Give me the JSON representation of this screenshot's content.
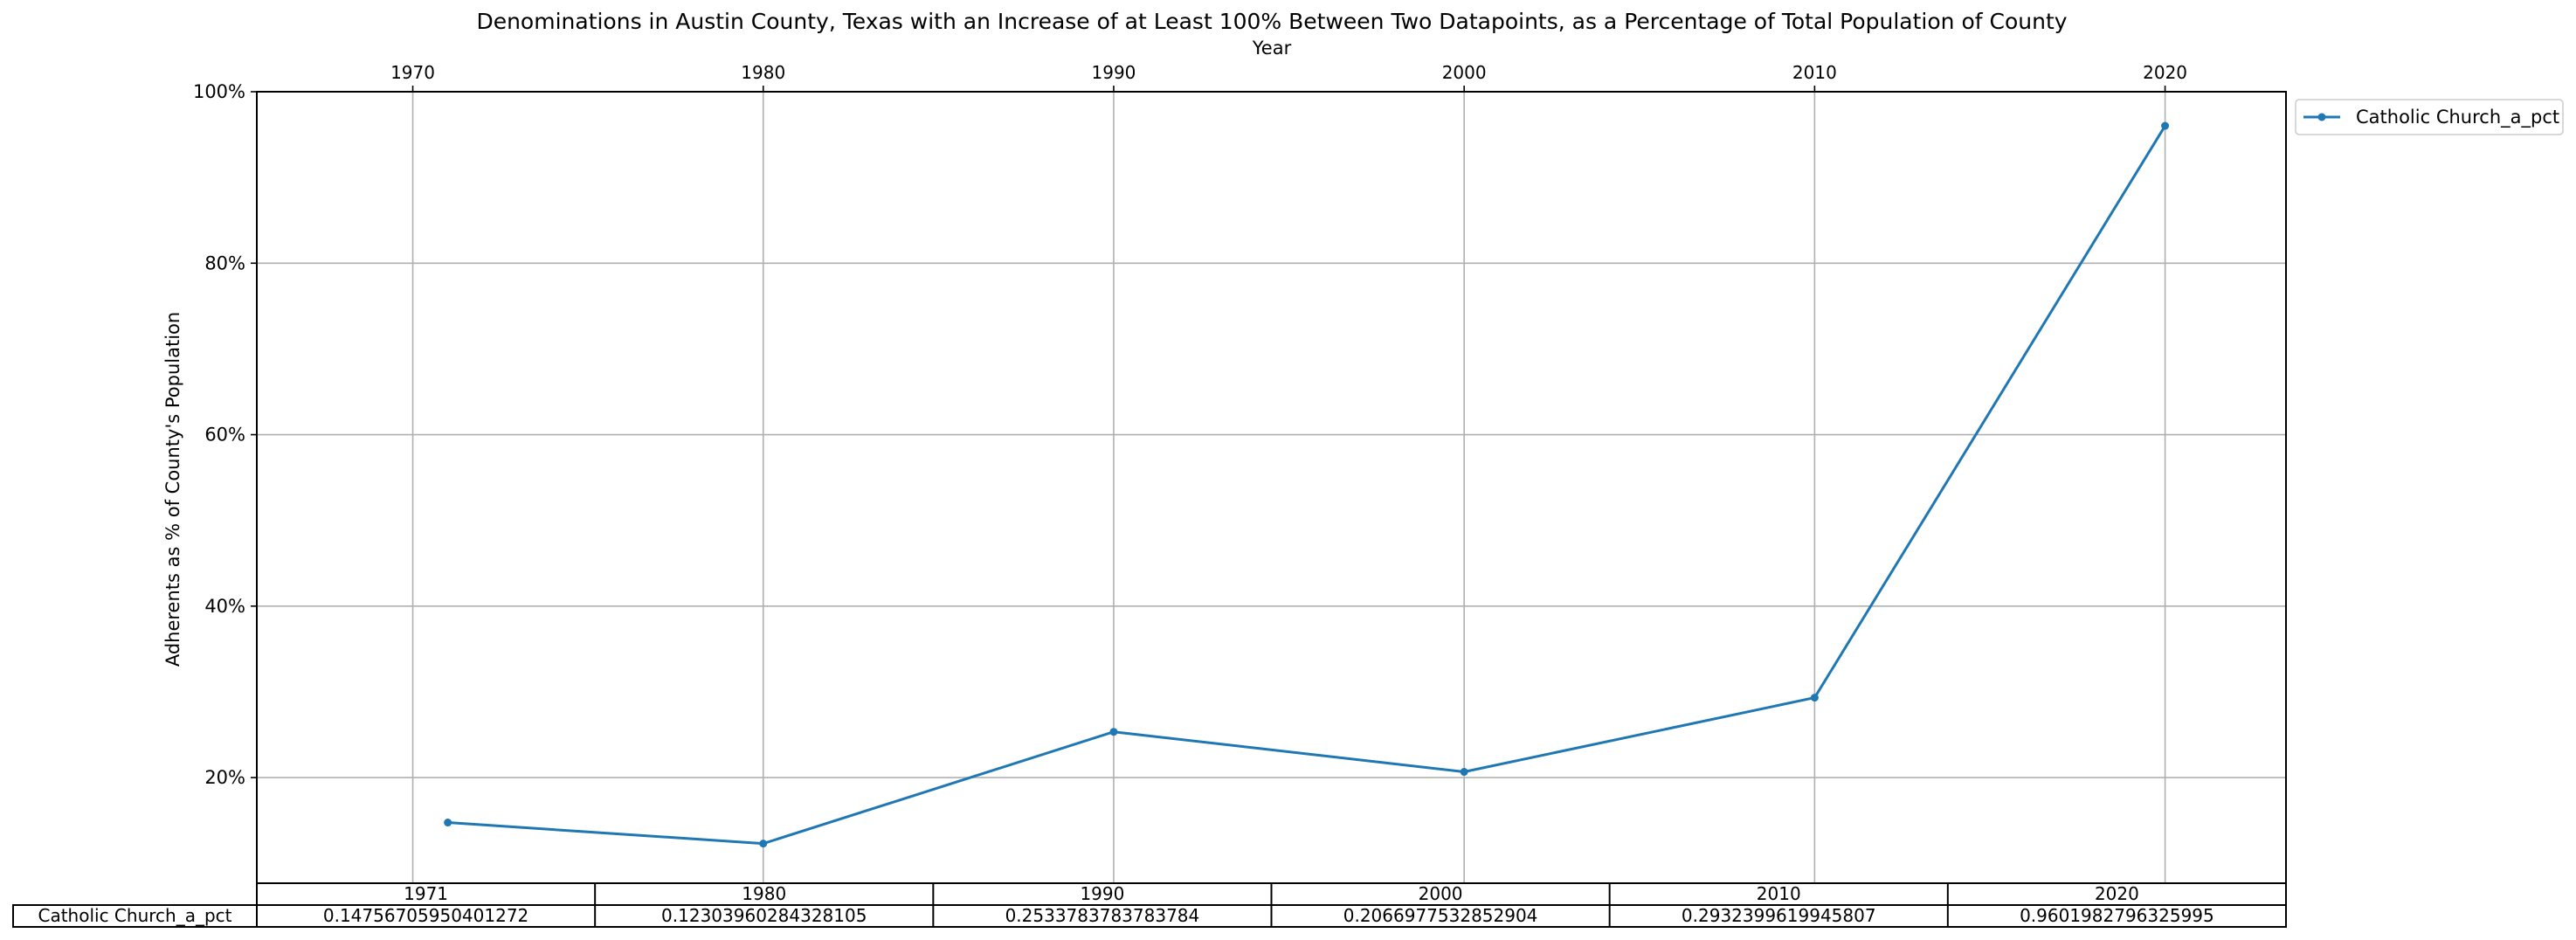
{
  "chart_data": {
    "type": "line",
    "title": "Denominations in Austin County, Texas with an Increase of at Least 100% Between Two Datapoints, as a Percentage of Total Population of County",
    "xlabel": "Year",
    "ylabel": "Adherents as % of County's Population",
    "x_ticks": [
      1970,
      1980,
      1990,
      2000,
      2010,
      2020
    ],
    "x_tick_labels": [
      "1970",
      "1980",
      "1990",
      "2000",
      "2010",
      "2020"
    ],
    "xlim": [
      1965.55,
      2023.45
    ],
    "y_ticks": [
      0.2,
      0.4,
      0.6,
      0.8,
      1.0
    ],
    "y_tick_labels": [
      "20%",
      "40%",
      "60%",
      "80%",
      "100%"
    ],
    "ylim": [
      0.0768,
      1.0
    ],
    "grid": true,
    "legend_position": "outside top-right",
    "series": [
      {
        "name": "Catholic Church_a_pct",
        "color": "#1f77b4",
        "x": [
          1971,
          1980,
          1990,
          2000,
          2010,
          2020
        ],
        "y": [
          0.14756705950401272,
          0.12303960284328105,
          0.2533783783783784,
          0.2066977532852904,
          0.2932399619945807,
          0.9601982796325995
        ]
      }
    ],
    "table": {
      "col_labels": [
        "1971",
        "1980",
        "1990",
        "2000",
        "2010",
        "2020"
      ],
      "rows": [
        {
          "label": "Catholic Church_a_pct",
          "cells": [
            "0.14756705950401272",
            "0.12303960284328105",
            "0.2533783783783784",
            "0.2066977532852904",
            "0.2932399619945807",
            "0.9601982796325995"
          ]
        }
      ]
    }
  }
}
